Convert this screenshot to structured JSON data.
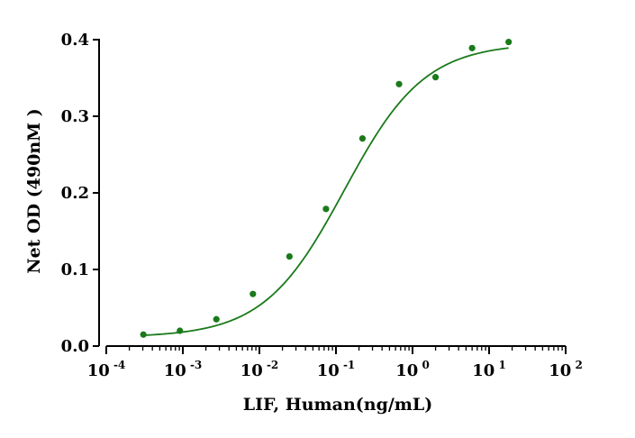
{
  "chart_data": {
    "type": "scatter",
    "title": "",
    "xlabel": "LIF, Human(ng/mL)",
    "ylabel": "Net OD (490nM )",
    "x_scale": "log",
    "xlim": [
      0.0001,
      100
    ],
    "ylim": [
      0.0,
      0.4
    ],
    "x_ticks": [
      {
        "base": "10",
        "exp": "-4",
        "value": 0.0001
      },
      {
        "base": "10",
        "exp": "-3",
        "value": 0.001
      },
      {
        "base": "10",
        "exp": "-2",
        "value": 0.01
      },
      {
        "base": "10",
        "exp": "-1",
        "value": 0.1
      },
      {
        "base": "10",
        "exp": "0",
        "value": 1
      },
      {
        "base": "10",
        "exp": "1",
        "value": 10
      },
      {
        "base": "10",
        "exp": "2",
        "value": 100
      }
    ],
    "y_ticks": [
      {
        "label": "0.0",
        "value": 0.0
      },
      {
        "label": "0.1",
        "value": 0.1
      },
      {
        "label": "0.2",
        "value": 0.2
      },
      {
        "label": "0.3",
        "value": 0.3
      },
      {
        "label": "0.4",
        "value": 0.4
      }
    ],
    "grid": false,
    "color": "#1a7a1a",
    "series": [
      {
        "points": [
          {
            "x": 0.000305,
            "y": 0.015
          },
          {
            "x": 0.000915,
            "y": 0.02
          },
          {
            "x": 0.00274,
            "y": 0.035
          },
          {
            "x": 0.00823,
            "y": 0.068
          },
          {
            "x": 0.0247,
            "y": 0.117
          },
          {
            "x": 0.0741,
            "y": 0.179
          },
          {
            "x": 0.222,
            "y": 0.271
          },
          {
            "x": 0.667,
            "y": 0.342
          },
          {
            "x": 2.0,
            "y": 0.351
          },
          {
            "x": 6.0,
            "y": 0.389
          },
          {
            "x": 18.0,
            "y": 0.397
          }
        ],
        "fit": {
          "model": "4PL",
          "bottom": 0.0115,
          "top": 0.3955,
          "ec50": 0.1285,
          "hill": 0.826
        }
      }
    ]
  }
}
